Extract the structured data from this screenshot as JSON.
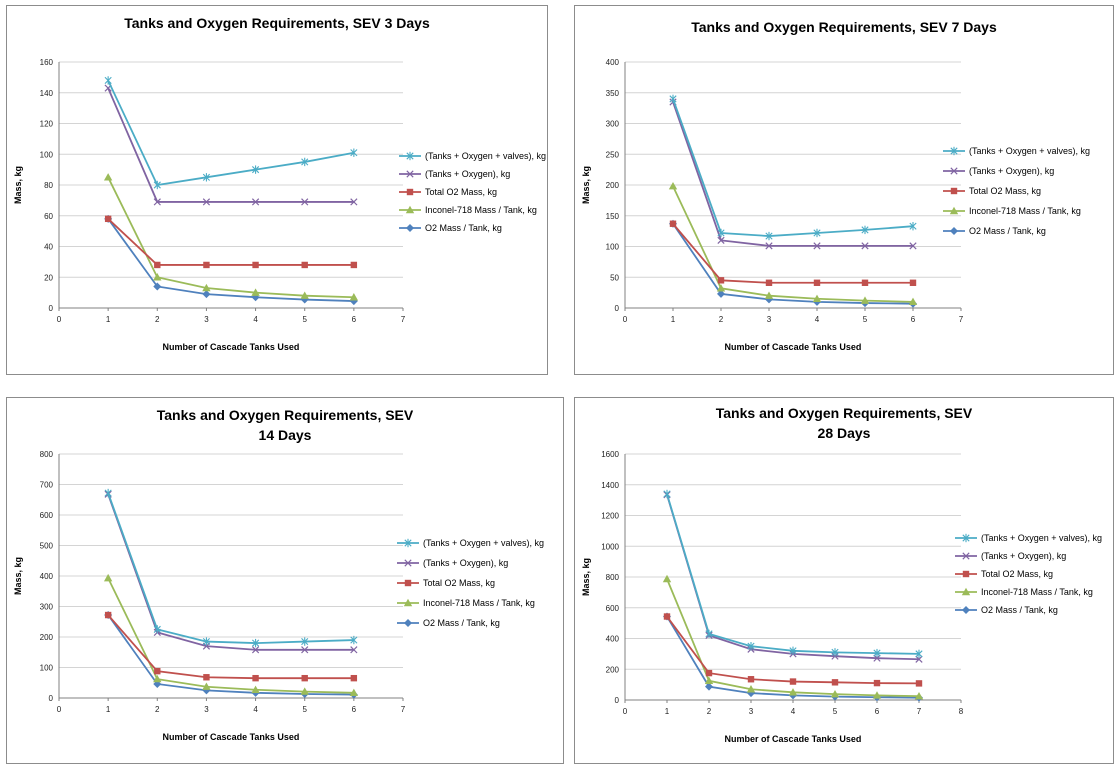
{
  "colors": {
    "tanks_oxygen_valves": "#4bacc6",
    "tanks_oxygen": "#8064a2",
    "total_o2": "#c0504d",
    "inconel": "#9bbb59",
    "o2_per_tank": "#4f81bd",
    "grid": "#d4d4d4",
    "axis": "#808080"
  },
  "legend_labels": [
    "(Tanks + Oxygen + valves), kg",
    "(Tanks + Oxygen), kg",
    "Total O2 Mass, kg",
    "Inconel-718  Mass / Tank,   kg",
    "O2 Mass / Tank, kg"
  ],
  "chart_data": [
    {
      "type": "line",
      "title_lines": [
        "Tanks and Oxygen Requirements, SEV 3 Days"
      ],
      "xlabel": "Number of Cascade Tanks Used",
      "ylabel": "Mass, kg",
      "xlim": [
        0,
        7
      ],
      "ylim": [
        0,
        160
      ],
      "ystep": 20,
      "x_ticks": [
        "0",
        "1",
        "2",
        "3",
        "4",
        "5",
        "6",
        "7"
      ],
      "y_ticks": [
        "0",
        "20",
        "40",
        "60",
        "80",
        "100",
        "120",
        "140",
        "160"
      ],
      "x": [
        1,
        2,
        3,
        4,
        5,
        6
      ],
      "grid": true,
      "legend_position": "right",
      "series": [
        {
          "name": "(Tanks + Oxygen + valves), kg",
          "values": [
            148,
            80,
            85,
            90,
            95,
            101
          ]
        },
        {
          "name": "(Tanks + Oxygen), kg",
          "values": [
            143,
            69,
            69,
            69,
            69,
            69
          ]
        },
        {
          "name": "Total O2 Mass, kg",
          "values": [
            58,
            28,
            28,
            28,
            28,
            28
          ]
        },
        {
          "name": "Inconel-718  Mass / Tank,   kg",
          "values": [
            85,
            20,
            13,
            10,
            8,
            7
          ]
        },
        {
          "name": "O2 Mass / Tank, kg",
          "values": [
            58,
            14,
            9,
            7,
            5.5,
            4.5
          ]
        }
      ]
    },
    {
      "type": "line",
      "title_lines": [
        "Tanks and Oxygen Requirements, SEV 7 Days"
      ],
      "xlabel": "Number of Cascade Tanks Used",
      "ylabel": "Mass, kg",
      "xlim": [
        0,
        7
      ],
      "ylim": [
        0,
        400
      ],
      "ystep": 50,
      "x_ticks": [
        "0",
        "1",
        "2",
        "3",
        "4",
        "5",
        "6",
        "7"
      ],
      "y_ticks": [
        "0",
        "50",
        "100",
        "150",
        "200",
        "250",
        "300",
        "350",
        "400"
      ],
      "x": [
        1,
        2,
        3,
        4,
        5,
        6
      ],
      "grid": true,
      "legend_position": "right",
      "series": [
        {
          "name": "(Tanks + Oxygen + valves), kg",
          "values": [
            340,
            122,
            117,
            122,
            127,
            133
          ]
        },
        {
          "name": "(Tanks + Oxygen), kg",
          "values": [
            335,
            110,
            101,
            101,
            101,
            101
          ]
        },
        {
          "name": "Total O2 Mass, kg",
          "values": [
            137,
            45,
            41,
            41,
            41,
            41
          ]
        },
        {
          "name": "Inconel-718  Mass / Tank,   kg",
          "values": [
            198,
            32,
            20,
            15,
            12,
            10
          ]
        },
        {
          "name": "O2 Mass / Tank, kg",
          "values": [
            137,
            23,
            14,
            10,
            8,
            7
          ]
        }
      ]
    },
    {
      "type": "line",
      "title_lines": [
        "Tanks and Oxygen Requirements, SEV",
        "14 Days"
      ],
      "xlabel": "Number of Cascade Tanks Used",
      "ylabel": "Mass, kg",
      "xlim": [
        0,
        7
      ],
      "ylim": [
        0,
        800
      ],
      "ystep": 100,
      "x_ticks": [
        "0",
        "1",
        "2",
        "3",
        "4",
        "5",
        "6",
        "7"
      ],
      "y_ticks": [
        "0",
        "100",
        "200",
        "300",
        "400",
        "500",
        "600",
        "700",
        "800"
      ],
      "x": [
        1,
        2,
        3,
        4,
        5,
        6
      ],
      "grid": true,
      "legend_position": "right",
      "series": [
        {
          "name": "(Tanks + Oxygen + valves), kg",
          "values": [
            672,
            225,
            185,
            180,
            185,
            190
          ]
        },
        {
          "name": "(Tanks + Oxygen), kg",
          "values": [
            668,
            215,
            170,
            158,
            158,
            158
          ]
        },
        {
          "name": "Total O2 Mass, kg",
          "values": [
            272,
            88,
            68,
            65,
            65,
            65
          ]
        },
        {
          "name": "Inconel-718  Mass / Tank,   kg",
          "values": [
            393,
            62,
            37,
            27,
            21,
            17
          ]
        },
        {
          "name": "O2 Mass / Tank, kg",
          "values": [
            272,
            46,
            25,
            17,
            13,
            11
          ]
        }
      ]
    },
    {
      "type": "line",
      "title_lines": [
        "Tanks and Oxygen Requirements, SEV",
        "28 Days"
      ],
      "xlabel": "Number of Cascade Tanks Used",
      "ylabel": "Mass, kg",
      "xlim": [
        0,
        8
      ],
      "ylim": [
        0,
        1600
      ],
      "ystep": 200,
      "x_ticks": [
        "0",
        "1",
        "2",
        "3",
        "4",
        "5",
        "6",
        "7",
        "8"
      ],
      "y_ticks": [
        "0",
        "200",
        "400",
        "600",
        "800",
        "1000",
        "1200",
        "1400",
        "1600"
      ],
      "x": [
        1,
        2,
        3,
        4,
        5,
        6,
        7
      ],
      "grid": true,
      "legend_position": "right",
      "series": [
        {
          "name": "(Tanks + Oxygen + valves), kg",
          "values": [
            1340,
            430,
            350,
            320,
            310,
            305,
            300
          ]
        },
        {
          "name": "(Tanks + Oxygen), kg",
          "values": [
            1335,
            420,
            330,
            300,
            285,
            272,
            265
          ]
        },
        {
          "name": "Total O2 Mass, kg",
          "values": [
            543,
            175,
            135,
            120,
            115,
            110,
            108
          ]
        },
        {
          "name": "Inconel-718  Mass / Tank,   kg",
          "values": [
            787,
            125,
            70,
            50,
            38,
            30,
            25
          ]
        },
        {
          "name": "O2 Mass / Tank, kg",
          "values": [
            543,
            87,
            45,
            30,
            22,
            18,
            15
          ]
        }
      ]
    }
  ]
}
